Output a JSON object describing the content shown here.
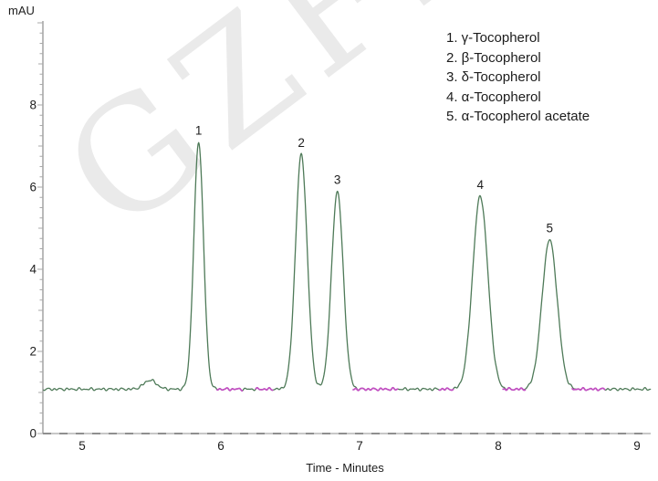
{
  "page": {
    "background": "#ffffff"
  },
  "watermark": {
    "text": "GZFL",
    "color": "#eaeaea"
  },
  "axes": {
    "y_title": "mAU",
    "x_title": "Time - Minutes",
    "y_tick_labels": [
      0,
      2,
      4,
      6,
      8
    ],
    "x_tick_labels": [
      5,
      6,
      7,
      8,
      9
    ]
  },
  "legend": {
    "items": [
      {
        "text": "1. γ-Tocopherol"
      },
      {
        "text": "2. β-Tocopherol"
      },
      {
        "text": "3. δ-Tocopherol"
      },
      {
        "text": "4. α-Tocopherol"
      },
      {
        "text": "5. α-Tocopherol acetate"
      }
    ]
  },
  "chart_data": {
    "type": "line",
    "title": "",
    "xlabel": "Time - Minutes",
    "ylabel": "mAU",
    "xlim": [
      4.72,
      9.1
    ],
    "ylim": [
      0,
      10
    ],
    "grid": false,
    "legend_position": "upper right",
    "baseline_mAU": 1.08,
    "trace_color": "#4e7a58",
    "integration_mark_color": "#c24fc2",
    "axis_color": "#9a9a9a",
    "peaks": [
      {
        "label": "1",
        "compound": "γ-Tocopherol",
        "retention_time_min": 5.84,
        "apex_mAU": 7.1,
        "sigma_min": 0.035
      },
      {
        "label": "2",
        "compound": "β-Tocopherol",
        "retention_time_min": 6.58,
        "apex_mAU": 6.8,
        "sigma_min": 0.042
      },
      {
        "label": "3",
        "compound": "δ-Tocopherol",
        "retention_time_min": 6.84,
        "apex_mAU": 5.9,
        "sigma_min": 0.042
      },
      {
        "label": "4",
        "compound": "α-Tocopherol",
        "retention_time_min": 7.87,
        "apex_mAU": 5.78,
        "sigma_min": 0.055
      },
      {
        "label": "5",
        "compound": "α-Tocopherol acetate",
        "retention_time_min": 8.37,
        "apex_mAU": 4.72,
        "sigma_min": 0.055
      }
    ],
    "minor_feature": {
      "retention_time_min": 5.49,
      "apex_mAU": 1.3,
      "sigma_min": 0.045
    },
    "integration_marks_min": [
      [
        5.97,
        6.16
      ],
      [
        6.25,
        6.38
      ],
      [
        6.95,
        7.28
      ],
      [
        7.57,
        7.68
      ],
      [
        8.03,
        8.2
      ],
      [
        8.53,
        8.77
      ]
    ]
  }
}
